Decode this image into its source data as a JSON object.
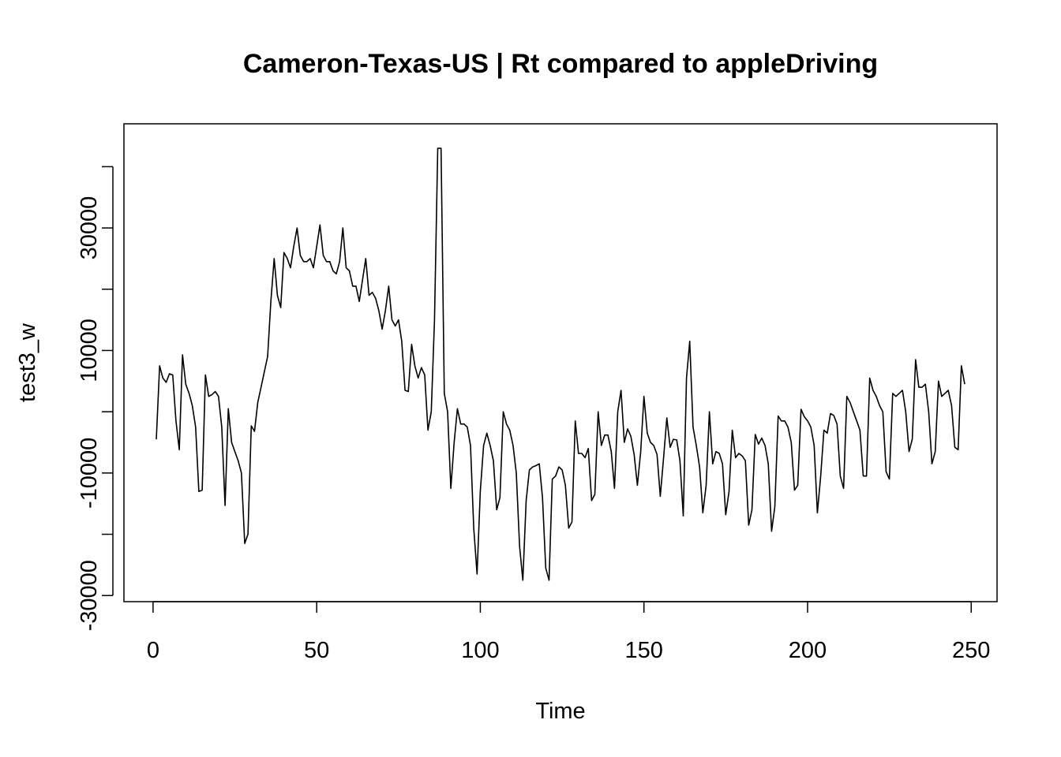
{
  "chart_data": {
    "type": "line",
    "title": "Cameron-Texas-US | Rt compared to appleDriving",
    "xlabel": "Time",
    "ylabel": "test3_w",
    "xlim": [
      -8.9,
      257.9
    ],
    "ylim": [
      -31000,
      47000
    ],
    "xticks": [
      0,
      50,
      100,
      150,
      200,
      250
    ],
    "yticks": [
      -30000,
      -20000,
      -10000,
      0,
      10000,
      20000,
      30000,
      40000
    ],
    "ytick_labels": [
      "-30000",
      "-10000",
      "10000",
      "30000"
    ],
    "ytick_label_values": [
      -30000,
      -10000,
      10000,
      30000
    ],
    "grid": false,
    "legend": "none",
    "line_color": "#000000",
    "series": [
      {
        "x": [
          1,
          2,
          3,
          4,
          5,
          6,
          7,
          8,
          9,
          10,
          11,
          12,
          13,
          14,
          15,
          16,
          17,
          18,
          19,
          20,
          21,
          22,
          23,
          24,
          25,
          26,
          27,
          28,
          29,
          30,
          31,
          32,
          33,
          34,
          35,
          36,
          37,
          38,
          39,
          40,
          41,
          42,
          43,
          44,
          45,
          46,
          47,
          48,
          49,
          50,
          51,
          52,
          53,
          54,
          55,
          56,
          57,
          58,
          59,
          60,
          61,
          62,
          63,
          64,
          65,
          66,
          67,
          68,
          69,
          70,
          71,
          72,
          73,
          74,
          75,
          76,
          77,
          78,
          79,
          80,
          81,
          82,
          83,
          84,
          85,
          86,
          87,
          88,
          89,
          90,
          91,
          92,
          93,
          94,
          95,
          96,
          97,
          98,
          99,
          100,
          101,
          102,
          103,
          104,
          105,
          106,
          107,
          108,
          109,
          110,
          111,
          112,
          113,
          114,
          115,
          116,
          117,
          118,
          119,
          120,
          121,
          122,
          123,
          124,
          125,
          126,
          127,
          128,
          129,
          130,
          131,
          132,
          133,
          134,
          135,
          136,
          137,
          138,
          139,
          140,
          141,
          142,
          143,
          144,
          145,
          146,
          147,
          148,
          149,
          150,
          151,
          152,
          153,
          154,
          155,
          156,
          157,
          158,
          159,
          160,
          161,
          162,
          163,
          164,
          165,
          166,
          167,
          168,
          169,
          170,
          171,
          172,
          173,
          174,
          175,
          176,
          177,
          178,
          179,
          180,
          181,
          182,
          183,
          184,
          185,
          186,
          187,
          188,
          189,
          190,
          191,
          192,
          193,
          194,
          195,
          196,
          197,
          198,
          199,
          200,
          201,
          202,
          203,
          204,
          205,
          206,
          207,
          208,
          209,
          210,
          211,
          212,
          213,
          214,
          215,
          216,
          217,
          218,
          219,
          220,
          221,
          222,
          223,
          224,
          225,
          226,
          227,
          228,
          229,
          230,
          231,
          232,
          233,
          234,
          235,
          236,
          237,
          238,
          239,
          240,
          241,
          242,
          243,
          244,
          245,
          246,
          247,
          248
        ],
        "y": [
          -4500,
          7500,
          5500,
          4800,
          6200,
          6000,
          -1500,
          -6200,
          9300,
          4500,
          3000,
          1000,
          -2500,
          -13000,
          -12800,
          6000,
          2500,
          2800,
          3300,
          2500,
          -2500,
          -15300,
          500,
          -5000,
          -6500,
          -8000,
          -10000,
          -21500,
          -20000,
          -2300,
          -3200,
          1500,
          4000,
          6500,
          9000,
          18000,
          25000,
          19000,
          17000,
          26000,
          25000,
          23500,
          27000,
          30000,
          25500,
          24500,
          24500,
          25000,
          23500,
          27000,
          30500,
          25500,
          24500,
          24500,
          23000,
          22500,
          24500,
          30000,
          23500,
          23000,
          20500,
          20500,
          18000,
          21500,
          25000,
          19000,
          19500,
          18500,
          16500,
          13500,
          16500,
          20500,
          15000,
          14000,
          15000,
          11500,
          3500,
          3300,
          11000,
          7500,
          5500,
          7200,
          6000,
          -3000,
          0,
          15000,
          43000,
          43000,
          3000,
          0,
          -12500,
          -5000,
          500,
          -2000,
          -2000,
          -2500,
          -5500,
          -19000,
          -26500,
          -13000,
          -5500,
          -3500,
          -5500,
          -8000,
          -16000,
          -14000,
          0,
          -2000,
          -3000,
          -5500,
          -10000,
          -22000,
          -27500,
          -14500,
          -9500,
          -9000,
          -8800,
          -8500,
          -14000,
          -25500,
          -27500,
          -11000,
          -10500,
          -9000,
          -9500,
          -12000,
          -19000,
          -18000,
          -1500,
          -6800,
          -6800,
          -7500,
          -6000,
          -14500,
          -13500,
          0,
          -5500,
          -3800,
          -3800,
          -6500,
          -12500,
          0,
          3500,
          -5000,
          -2800,
          -4000,
          -7000,
          -12000,
          -6500,
          2500,
          -3500,
          -5000,
          -5500,
          -7000,
          -13800,
          -7500,
          -1000,
          -5800,
          -4500,
          -4600,
          -8000,
          -17000,
          5500,
          11500,
          -2500,
          -5500,
          -9000,
          -16500,
          -12000,
          0,
          -8500,
          -6500,
          -6800,
          -8500,
          -16800,
          -13000,
          -3000,
          -7500,
          -6800,
          -7200,
          -8000,
          -18500,
          -16000,
          -3700,
          -5300,
          -4300,
          -5500,
          -8500,
          -19500,
          -15500,
          -700,
          -1500,
          -1500,
          -2500,
          -5000,
          -12800,
          -12000,
          400,
          -800,
          -1500,
          -2500,
          -5500,
          -16500,
          -10500,
          -3000,
          -3500,
          -300,
          -600,
          -2000,
          -10500,
          -12500,
          2500,
          1500,
          0,
          -1500,
          -3000,
          -10500,
          -10500,
          5500,
          3500,
          2500,
          1000,
          0,
          -9800,
          -11000,
          3000,
          2500,
          3000,
          3500,
          0,
          -6500,
          -4500,
          8500,
          4000,
          4000,
          4500,
          0,
          -8500,
          -6500,
          5000,
          2500,
          3000,
          3500,
          1000,
          -5800,
          -6200,
          7500,
          4500
        ]
      }
    ]
  }
}
